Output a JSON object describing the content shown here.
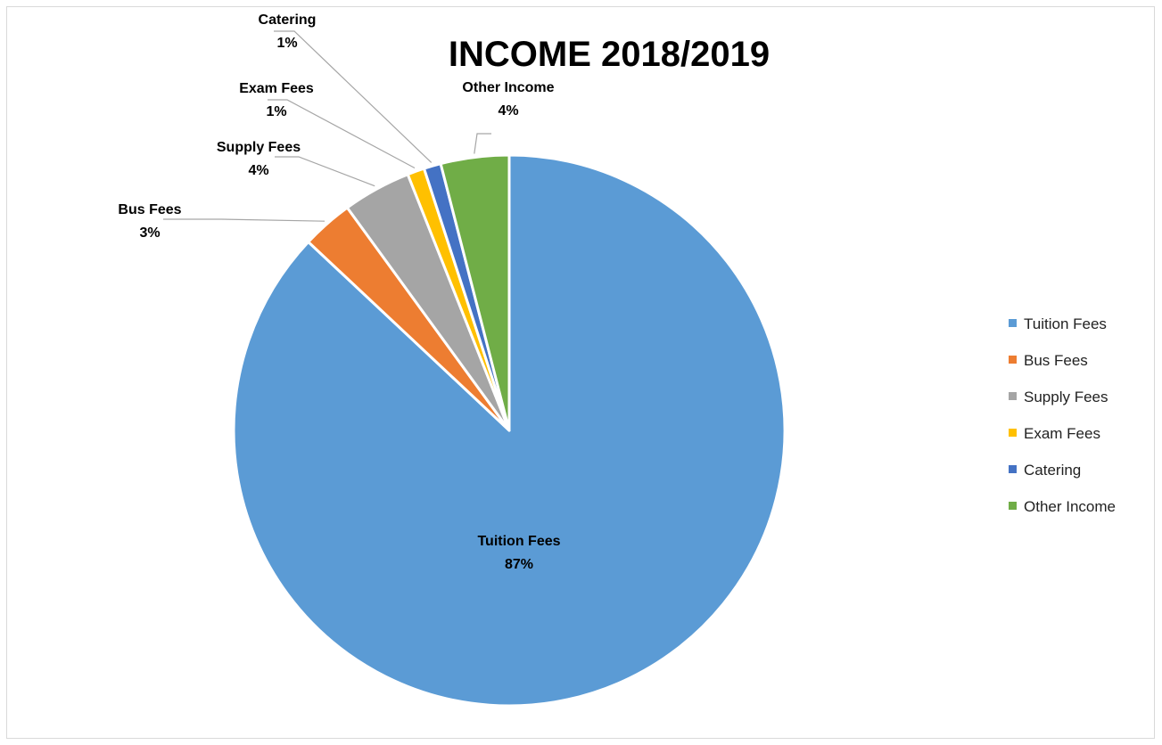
{
  "chart_data": {
    "type": "pie",
    "title": "INCOME 2018/2019",
    "legend_position": "right",
    "slices": [
      {
        "label": "Tuition Fees",
        "value": 87,
        "display": "87%",
        "color": "#5B9BD5"
      },
      {
        "label": "Bus Fees",
        "value": 3,
        "display": "3%",
        "color": "#ED7D31"
      },
      {
        "label": "Supply Fees",
        "value": 4,
        "display": "4%",
        "color": "#A5A5A5"
      },
      {
        "label": "Exam Fees",
        "value": 1,
        "display": "1%",
        "color": "#FFC000"
      },
      {
        "label": "Catering",
        "value": 1,
        "display": "1%",
        "color": "#4472C4"
      },
      {
        "label": "Other Income",
        "value": 4,
        "display": "4%",
        "color": "#70AD47"
      }
    ]
  }
}
